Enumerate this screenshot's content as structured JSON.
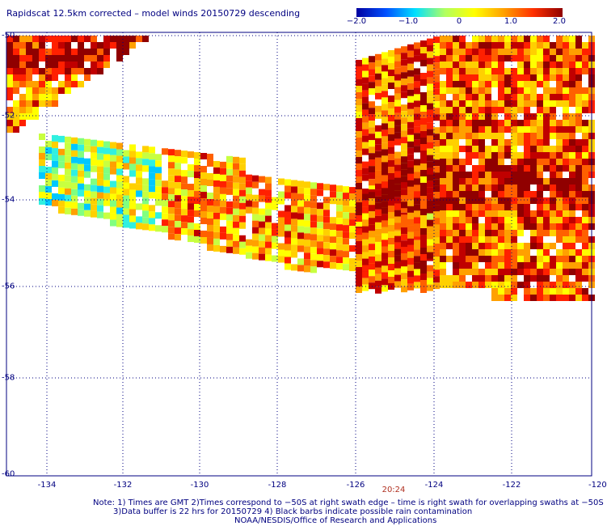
{
  "title": "Rapidscat 12.5km corrected – model winds 20150729 descending",
  "colorbar": {
    "ticks": [
      "−2.0",
      "−1.0",
      "0",
      "1.0",
      "2.0"
    ],
    "tick_values": [
      -2.0,
      -1.0,
      0,
      1.0,
      2.0
    ],
    "range": [
      -2.0,
      2.0
    ],
    "colors": [
      "#0000a0",
      "#0050ff",
      "#00e0ff",
      "#b0ff60",
      "#ffff00",
      "#ffa000",
      "#ff3000",
      "#900000"
    ]
  },
  "map": {
    "lat_labels": [
      "-50",
      "-52",
      "-54",
      "-56",
      "-58",
      "-60"
    ],
    "lat_values": [
      -50,
      -52,
      -54,
      -56,
      -58,
      -60
    ],
    "lon_labels": [
      "-134",
      "-132",
      "-130",
      "-128",
      "-126",
      "-124",
      "-122",
      "-120"
    ],
    "lon_values": [
      -134,
      -132,
      -130,
      -128,
      -126,
      -124,
      -122,
      -120
    ],
    "lon_range": [
      -135,
      -120
    ],
    "lat_range": [
      -60,
      -50
    ],
    "grid": "dotted"
  },
  "time_label": "20:24",
  "notes": [
    "Note: 1) Times are GMT 2)Times correspond to −50S at right swath edge – time is right swath for overlapping swaths at −50S",
    "3)Data buffer is 22 hrs for 20150729 4) Black barbs indicate possible rain contamination",
    "NOAA/NESDIS/Office of Research and Applications"
  ]
}
